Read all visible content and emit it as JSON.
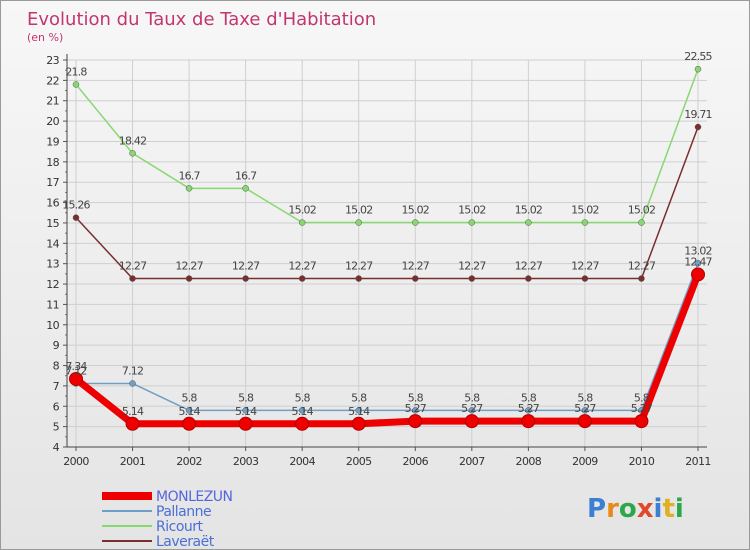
{
  "chart_data": {
    "type": "line",
    "title": "Evolution du Taux de Taxe d'Habitation",
    "subtitle": "(en %)",
    "x": [
      "2000",
      "2001",
      "2002",
      "2003",
      "2004",
      "2005",
      "2006",
      "2007",
      "2008",
      "2009",
      "2010",
      "2011"
    ],
    "ylim": [
      4,
      23
    ],
    "yticks": [
      "4",
      "5",
      "6",
      "7",
      "8",
      "9",
      "10",
      "11",
      "12",
      "13",
      "14",
      "15",
      "16",
      "17",
      "18",
      "19",
      "20",
      "21",
      "22",
      "23"
    ],
    "grid": true,
    "legend_position": "bottom-left",
    "series": [
      {
        "name": "MONLEZUN",
        "color": "#ee0000",
        "values": [
          7.34,
          5.14,
          5.14,
          5.14,
          5.14,
          5.14,
          5.27,
          5.27,
          5.27,
          5.27,
          5.27,
          12.47
        ],
        "labels": [
          "7.34",
          "5.14",
          "5.14",
          "5.14",
          "5.14",
          "5.14",
          "5.27",
          "5.27",
          "5.27",
          "5.27",
          "5.27",
          "12.47"
        ]
      },
      {
        "name": "Pallanne",
        "color": "#6f9fc7",
        "values": [
          7.12,
          7.12,
          5.8,
          5.8,
          5.8,
          5.8,
          5.8,
          5.8,
          5.8,
          5.8,
          5.8,
          13.02
        ],
        "labels": [
          "7.12",
          "7.12",
          "5.8",
          "5.8",
          "5.8",
          "5.8",
          "5.8",
          "5.8",
          "5.8",
          "5.8",
          "5.8",
          "13.02"
        ]
      },
      {
        "name": "Ricourt",
        "color": "#88d870",
        "values": [
          21.8,
          18.42,
          16.7,
          16.7,
          15.02,
          15.02,
          15.02,
          15.02,
          15.02,
          15.02,
          15.02,
          22.55
        ],
        "labels": [
          "21.8",
          "18.42",
          "16.7",
          "16.7",
          "15.02",
          "15.02",
          "15.02",
          "15.02",
          "15.02",
          "15.02",
          "15.02",
          "22.55"
        ]
      },
      {
        "name": "Laveraët",
        "color": "#7a2e2e",
        "values": [
          15.26,
          12.27,
          12.27,
          12.27,
          12.27,
          12.27,
          12.27,
          12.27,
          12.27,
          12.27,
          12.27,
          19.71
        ],
        "labels": [
          "15.26",
          "12.27",
          "12.27",
          "12.27",
          "12.27",
          "12.27",
          "12.27",
          "12.27",
          "12.27",
          "12.27",
          "12.27",
          "19.71"
        ]
      }
    ]
  },
  "logo": {
    "text": "Proxiti"
  }
}
